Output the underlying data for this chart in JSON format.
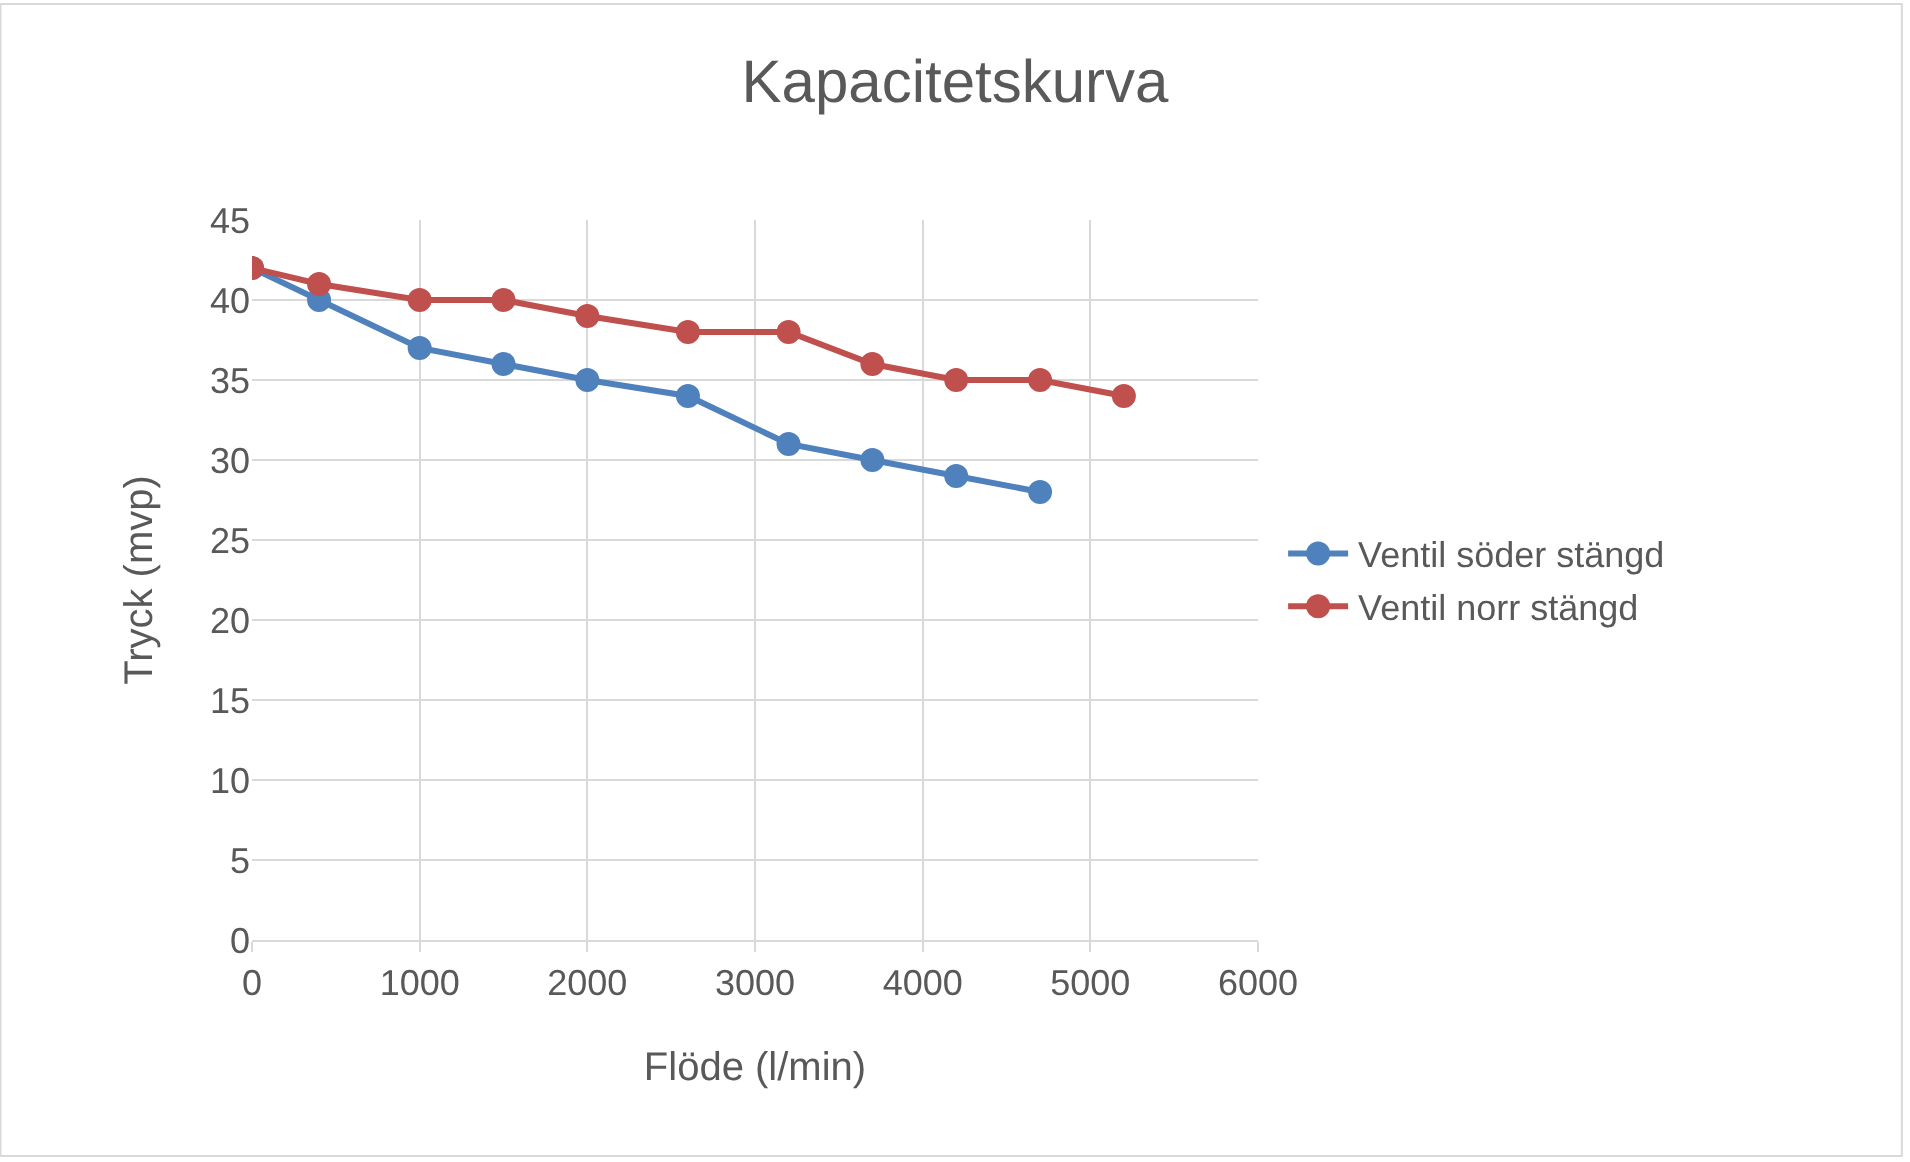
{
  "chart_data": {
    "type": "line",
    "title": "Kapacitetskurva",
    "xlabel": "Flöde (l/min)",
    "ylabel": "Tryck (mvp)",
    "series": [
      {
        "name": "Ventil söder stängd",
        "color": "#4f81bd",
        "x": [
          0,
          400,
          1000,
          1500,
          2000,
          2600,
          3200,
          3700,
          4200,
          4700
        ],
        "values": [
          42,
          40,
          37,
          36,
          35,
          34,
          31,
          30,
          29,
          28
        ]
      },
      {
        "name": "Ventil norr stängd",
        "color": "#c0504d",
        "x": [
          0,
          400,
          1000,
          1500,
          2000,
          2600,
          3200,
          3700,
          4200,
          4700,
          5200
        ],
        "values": [
          42,
          41,
          40,
          40,
          39,
          38,
          38,
          36,
          35,
          35,
          34
        ]
      }
    ],
    "xlim": [
      0,
      6000
    ],
    "xticks": [
      0,
      1000,
      2000,
      3000,
      4000,
      5000,
      6000
    ],
    "ylim": [
      0,
      45
    ],
    "yticks": [
      0,
      5,
      10,
      15,
      20,
      25,
      30,
      35,
      40,
      45
    ],
    "grid": true,
    "legend": "right",
    "marker": "circle",
    "line_style": "solid"
  }
}
